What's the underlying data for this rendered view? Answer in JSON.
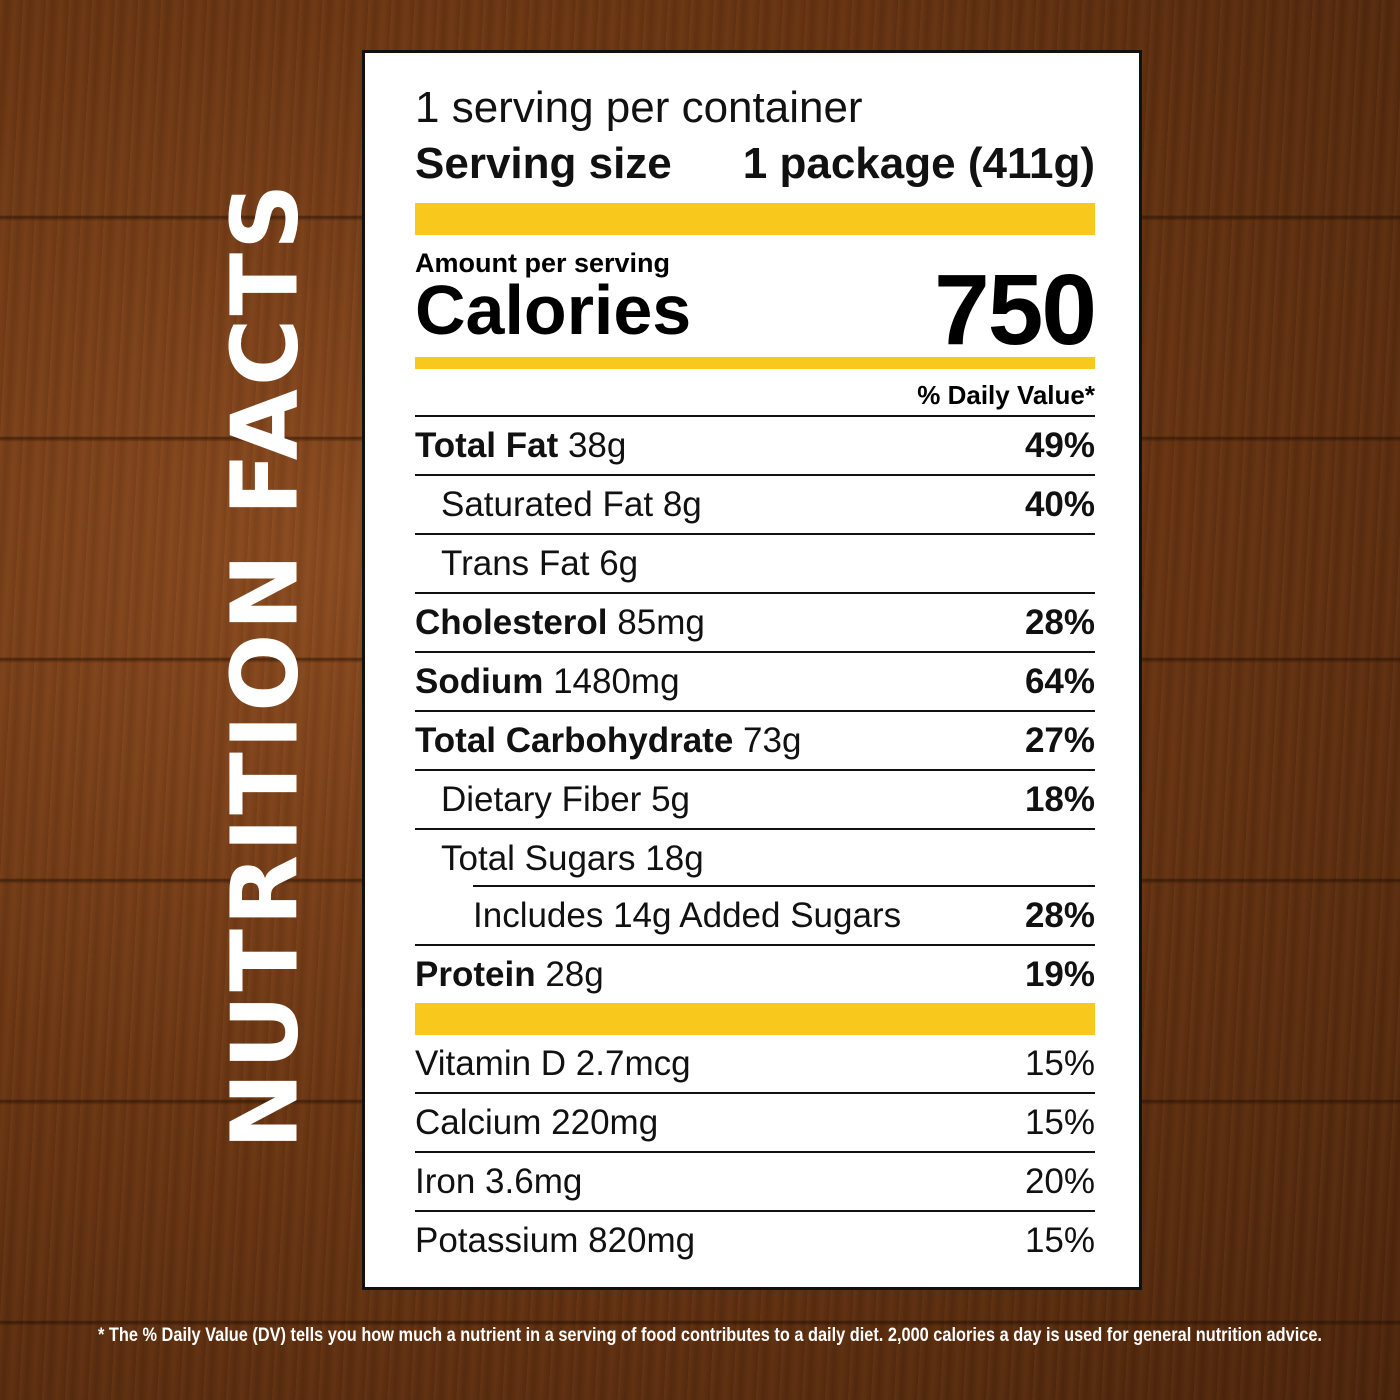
{
  "side_title": "NUTRITION FACTS",
  "label": {
    "servings_per_container": "1 serving per container",
    "serving_size_label": "Serving size",
    "serving_size_value": "1 package (411g)",
    "amount_per_serving": "Amount per serving",
    "calories_label": "Calories",
    "calories_value": "750",
    "daily_value_header": "% Daily Value*",
    "nutrients": [
      {
        "name": "Total Fat",
        "amount": "38g",
        "dv": "49%"
      },
      {
        "name": "Saturated Fat",
        "amount": "8g",
        "dv": "40%"
      },
      {
        "name": "Trans Fat",
        "amount": "6g",
        "dv": ""
      },
      {
        "name": "Cholesterol",
        "amount": "85mg",
        "dv": "28%"
      },
      {
        "name": "Sodium",
        "amount": "1480mg",
        "dv": "64%"
      },
      {
        "name": "Total Carbohydrate",
        "amount": "73g",
        "dv": "27%"
      },
      {
        "name": "Dietary Fiber",
        "amount": "5g",
        "dv": "18%"
      },
      {
        "name": "Total Sugars",
        "amount": "18g",
        "dv": ""
      },
      {
        "name": "Includes 14g Added Sugars",
        "amount": "",
        "dv": "28%"
      },
      {
        "name": "Protein",
        "amount": "28g",
        "dv": "19%"
      }
    ],
    "vitamins": [
      {
        "text": "Vitamin D 2.7mcg",
        "dv": "15%"
      },
      {
        "text": "Calcium 220mg",
        "dv": "15%"
      },
      {
        "text": "Iron 3.6mg",
        "dv": "20%"
      },
      {
        "text": "Potassium 820mg",
        "dv": "15%"
      }
    ]
  },
  "footnote": "* The % Daily Value (DV) tells you how much a nutrient in a serving of food contributes to a daily diet. 2,000 calories a day is used for general nutrition advice.",
  "colors": {
    "accent_yellow": "#f8c81c",
    "background_wood": "#6a3512"
  }
}
